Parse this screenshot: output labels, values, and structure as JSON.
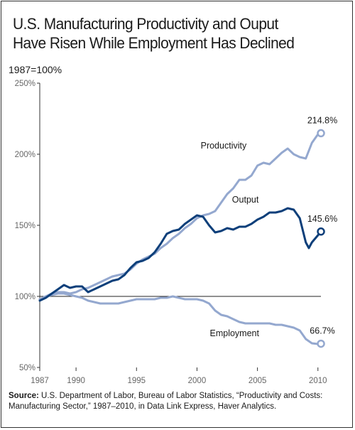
{
  "title_line1": "U.S. Manufacturing Productivity and Ouput",
  "title_line2": "Have Risen While Employment Has Declined",
  "subtitle": "1987=100%",
  "source_label": "Source:",
  "source_text": "U.S. Department of Labor, Bureau of Labor Statistics, “Productivity and Costs: Manufacturing Sector,” 1987–2010, in Data Link Express, Haver Analytics.",
  "colors": {
    "productivity": "#94a8cf",
    "output": "#0d3f7a",
    "employment": "#94a8cf",
    "baseline": "#222222",
    "axis_text": "#666666"
  },
  "chart_data": {
    "type": "line",
    "xlim": [
      1987,
      2010.6
    ],
    "ylim": [
      50,
      250
    ],
    "y_ticks": [
      250,
      200,
      150,
      100,
      50
    ],
    "y_tick_labels": [
      "250%",
      "200%",
      "150%",
      "100%",
      "50%"
    ],
    "x_ticks": [
      1987,
      1990,
      1995,
      2000,
      2005,
      2010
    ],
    "x_tick_labels": [
      "1987",
      "1990",
      "1995",
      "2000",
      "2005",
      "2010"
    ],
    "reference_line": 100,
    "series": [
      {
        "name": "Productivity",
        "end_label": "214.8%",
        "x": [
          1987,
          1987.5,
          1988,
          1988.5,
          1989,
          1989.5,
          1990,
          1990.5,
          1991,
          1991.5,
          1992,
          1992.5,
          1993,
          1993.5,
          1994,
          1994.5,
          1995,
          1995.5,
          1996,
          1996.5,
          1997,
          1997.5,
          1998,
          1998.5,
          1999,
          1999.5,
          2000,
          2000.5,
          2001,
          2001.5,
          2002,
          2002.5,
          2003,
          2003.5,
          2004,
          2004.5,
          2005,
          2005.5,
          2006,
          2006.5,
          2007,
          2007.5,
          2008,
          2008.5,
          2009,
          2009.5,
          2010,
          2010.25
        ],
        "values": [
          98,
          100,
          102,
          103,
          103,
          102,
          103,
          105,
          106,
          108,
          110,
          112,
          114,
          115,
          116,
          119,
          123,
          126,
          128,
          130,
          134,
          137,
          141,
          144,
          148,
          151,
          155,
          157,
          158,
          160,
          166,
          172,
          176,
          182,
          182,
          185,
          192,
          194,
          193,
          197,
          201,
          204,
          200,
          198,
          197,
          208,
          214,
          214.8
        ]
      },
      {
        "name": "Output",
        "end_label": "145.6%",
        "x": [
          1987,
          1987.5,
          1988,
          1988.5,
          1989,
          1989.5,
          1990,
          1990.5,
          1991,
          1991.5,
          1992,
          1992.5,
          1993,
          1993.5,
          1994,
          1994.5,
          1995,
          1995.5,
          1996,
          1996.5,
          1997,
          1997.5,
          1998,
          1998.5,
          1999,
          1999.5,
          2000,
          2000.5,
          2001,
          2001.5,
          2002,
          2002.5,
          2003,
          2003.5,
          2004,
          2004.5,
          2005,
          2005.5,
          2006,
          2006.5,
          2007,
          2007.5,
          2008,
          2008.5,
          2009,
          2009.25,
          2009.5,
          2010,
          2010.25
        ],
        "values": [
          97,
          99,
          102,
          105,
          108,
          106,
          107,
          107,
          103,
          105,
          107,
          109,
          111,
          112,
          115,
          120,
          124,
          125,
          127,
          131,
          137,
          144,
          146,
          147,
          151,
          154,
          157,
          156,
          150,
          145,
          146,
          148,
          147,
          149,
          149,
          151,
          154,
          156,
          159,
          159,
          160,
          162,
          161,
          155,
          138,
          134,
          138,
          143,
          145.6
        ]
      },
      {
        "name": "Employment",
        "end_label": "66.7%",
        "x": [
          1987,
          1987.5,
          1988,
          1988.5,
          1989,
          1989.5,
          1990,
          1990.5,
          1991,
          1991.5,
          1992,
          1992.5,
          1993,
          1993.5,
          1994,
          1994.5,
          1995,
          1995.5,
          1996,
          1996.5,
          1997,
          1997.5,
          1998,
          1998.5,
          1999,
          1999.5,
          2000,
          2000.5,
          2001,
          2001.5,
          2002,
          2002.5,
          2003,
          2003.5,
          2004,
          2004.5,
          2005,
          2005.5,
          2006,
          2006.5,
          2007,
          2007.5,
          2008,
          2008.5,
          2009,
          2009.5,
          2010,
          2010.25
        ],
        "values": [
          98,
          100,
          101,
          102,
          102,
          101,
          100,
          99,
          97,
          96,
          95,
          95,
          95,
          95,
          96,
          97,
          98,
          98,
          98,
          98,
          99,
          99,
          100,
          99,
          98,
          98,
          98,
          97,
          95,
          90,
          87,
          86,
          84,
          82,
          81,
          81,
          81,
          81,
          81,
          80,
          80,
          79,
          78,
          76,
          70,
          67,
          66.5,
          66.7
        ]
      }
    ]
  }
}
